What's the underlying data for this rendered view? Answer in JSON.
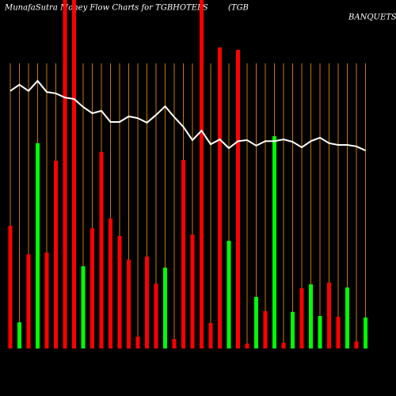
{
  "chart_data": {
    "type": "bar",
    "title": "MunafaSutra  Money  Flow  Charts for TGBHOTELS",
    "company": [
      "(TGB",
      "BANQUETS AND"
    ],
    "categories": [
      null,
      null,
      null,
      null,
      null,
      null,
      null,
      null,
      null,
      null,
      null,
      null,
      null,
      null,
      null,
      null,
      null,
      null,
      null,
      null,
      null,
      null,
      null,
      null,
      null,
      null,
      null,
      null,
      null,
      null,
      null,
      null,
      null,
      null,
      null,
      null,
      null,
      null,
      null,
      null
    ],
    "values": [
      35.2,
      7.5,
      27,
      58.9,
      27.5,
      53.9,
      105,
      105,
      23.6,
      34.5,
      56.4,
      37.3,
      32.3,
      25.5,
      3.4,
      26.4,
      18.6,
      23.2,
      2.7,
      54.1,
      32.7,
      105,
      7.3,
      86.4,
      30.9,
      85.7,
      1.4,
      14.8,
      10.7,
      60.9,
      1.6,
      10.5,
      17.3,
      18.4,
      9.3,
      18.9,
      9.1,
      17.5,
      2,
      8.9
    ],
    "colors": [
      "#ff0000",
      "#00ff00",
      "#ff0000",
      "#00ff00",
      "#ff0000",
      "#ff0000",
      "#ff0000",
      "#ff0000",
      "#00ff00",
      "#ff0000",
      "#ff0000",
      "#ff0000",
      "#ff0000",
      "#ff0000",
      "#ff0000",
      "#ff0000",
      "#ff0000",
      "#00ff00",
      "#ff0000",
      "#ff0000",
      "#ff0000",
      "#ff0000",
      "#ff0000",
      "#ff0000",
      "#00ff00",
      "#ff0000",
      "#ff0000",
      "#00ff00",
      "#ff0000",
      "#00ff00",
      "#ff0000",
      "#00ff00",
      "#ff0000",
      "#00ff00",
      "#00ff00",
      "#ff0000",
      "#ff0000",
      "#00ff00",
      "#ff0000",
      "#00ff00"
    ],
    "line": {
      "color": "#ffffff",
      "values": [
        73.9,
        75.7,
        73.9,
        76.8,
        73.6,
        73.2,
        72,
        71.6,
        69.3,
        67.5,
        68.2,
        65,
        65,
        66.6,
        66.1,
        64.8,
        67,
        69.5,
        66.4,
        63.6,
        59.8,
        62.5,
        58.6,
        60,
        57.5,
        59.5,
        59.8,
        58.2,
        59.5,
        59.5,
        60,
        59.3,
        57.7,
        59.5,
        60.5,
        58.9,
        58.4,
        58.4,
        58,
        56.8
      ]
    },
    "ylim": [
      0,
      100
    ],
    "gridline_color": "#c87800"
  }
}
